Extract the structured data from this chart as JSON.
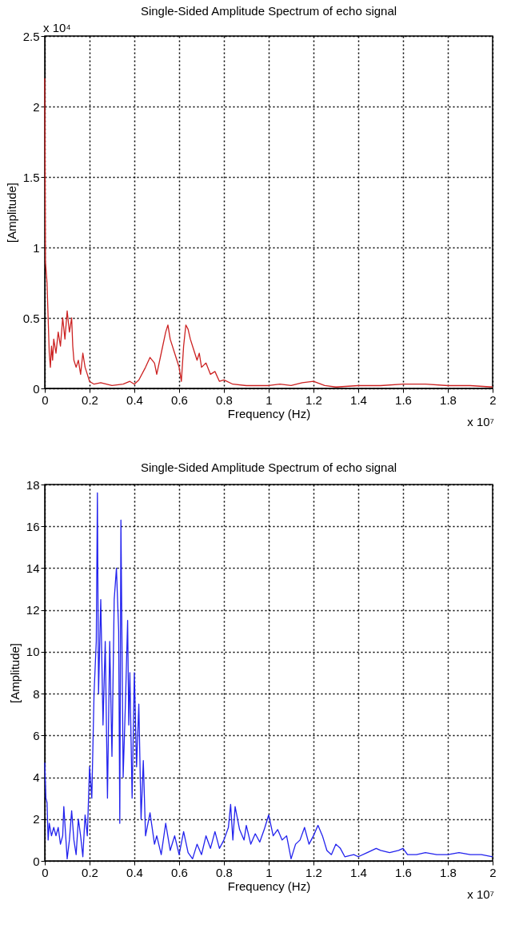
{
  "chart_data": [
    {
      "type": "line",
      "title": "Single-Sided Amplitude Spectrum of echo signal",
      "xlabel": "Frequency (Hz)",
      "ylabel": "[Amplitude]",
      "annotations": [
        "x 10⁴",
        "x 10⁷"
      ],
      "x": [
        0,
        0.003,
        0.01,
        0.015,
        0.02,
        0.025,
        0.03,
        0.035,
        0.04,
        0.05,
        0.06,
        0.07,
        0.08,
        0.09,
        0.1,
        0.11,
        0.12,
        0.125,
        0.13,
        0.14,
        0.15,
        0.16,
        0.17,
        0.18,
        0.19,
        0.2,
        0.22,
        0.25,
        0.3,
        0.35,
        0.38,
        0.4,
        0.42,
        0.45,
        0.47,
        0.49,
        0.5,
        0.52,
        0.54,
        0.55,
        0.56,
        0.58,
        0.59,
        0.6,
        0.61,
        0.62,
        0.63,
        0.64,
        0.65,
        0.66,
        0.68,
        0.69,
        0.7,
        0.72,
        0.74,
        0.76,
        0.78,
        0.8,
        0.84,
        0.9,
        1.0,
        1.05,
        1.1,
        1.15,
        1.2,
        1.25,
        1.3,
        1.4,
        1.5,
        1.6,
        1.7,
        1.8,
        1.9,
        2.0
      ],
      "series": [
        {
          "color": "#cc2222",
          "values": [
            2.2,
            0.9,
            0.75,
            0.5,
            0.25,
            0.15,
            0.3,
            0.2,
            0.35,
            0.25,
            0.4,
            0.3,
            0.5,
            0.35,
            0.55,
            0.4,
            0.5,
            0.3,
            0.2,
            0.15,
            0.2,
            0.1,
            0.25,
            0.15,
            0.1,
            0.05,
            0.03,
            0.04,
            0.02,
            0.03,
            0.05,
            0.03,
            0.06,
            0.15,
            0.22,
            0.18,
            0.1,
            0.25,
            0.4,
            0.45,
            0.35,
            0.25,
            0.2,
            0.15,
            0.05,
            0.3,
            0.45,
            0.42,
            0.35,
            0.3,
            0.2,
            0.25,
            0.15,
            0.18,
            0.1,
            0.12,
            0.05,
            0.06,
            0.03,
            0.02,
            0.02,
            0.03,
            0.02,
            0.04,
            0.05,
            0.02,
            0.01,
            0.02,
            0.02,
            0.03,
            0.03,
            0.02,
            0.02,
            0.01
          ]
        }
      ],
      "xlim": [
        0,
        2
      ],
      "xticks": [
        0,
        0.2,
        0.4,
        0.6,
        0.8,
        1,
        1.2,
        1.4,
        1.6,
        1.8,
        2
      ],
      "ylim": [
        0,
        2.5
      ],
      "yticks": [
        0,
        0.5,
        1,
        1.5,
        2,
        2.5
      ],
      "grid": true
    },
    {
      "type": "line",
      "title": "Single-Sided Amplitude Spectrum of echo signal",
      "xlabel": "Frequency (Hz)",
      "ylabel": "[Amplitude]",
      "annotations": [
        "x 10⁷"
      ],
      "x": [
        0,
        0.005,
        0.01,
        0.015,
        0.02,
        0.03,
        0.04,
        0.05,
        0.06,
        0.07,
        0.08,
        0.085,
        0.1,
        0.11,
        0.12,
        0.13,
        0.14,
        0.15,
        0.16,
        0.17,
        0.18,
        0.19,
        0.2,
        0.21,
        0.22,
        0.23,
        0.235,
        0.24,
        0.25,
        0.26,
        0.27,
        0.28,
        0.29,
        0.3,
        0.31,
        0.32,
        0.33,
        0.335,
        0.34,
        0.35,
        0.36,
        0.37,
        0.375,
        0.38,
        0.39,
        0.4,
        0.41,
        0.42,
        0.43,
        0.44,
        0.45,
        0.47,
        0.49,
        0.5,
        0.52,
        0.54,
        0.56,
        0.58,
        0.6,
        0.62,
        0.64,
        0.66,
        0.68,
        0.7,
        0.72,
        0.74,
        0.76,
        0.78,
        0.8,
        0.82,
        0.83,
        0.84,
        0.85,
        0.87,
        0.89,
        0.9,
        0.92,
        0.94,
        0.96,
        0.98,
        1.0,
        1.02,
        1.04,
        1.06,
        1.08,
        1.1,
        1.12,
        1.14,
        1.16,
        1.18,
        1.2,
        1.22,
        1.24,
        1.26,
        1.28,
        1.3,
        1.32,
        1.34,
        1.38,
        1.4,
        1.44,
        1.48,
        1.5,
        1.54,
        1.58,
        1.6,
        1.62,
        1.66,
        1.7,
        1.75,
        1.8,
        1.85,
        1.9,
        1.95,
        2.0
      ],
      "series": [
        {
          "color": "#2222ee",
          "values": [
            4.7,
            3,
            2.8,
            1,
            1.8,
            1.2,
            1.6,
            1.2,
            1.6,
            0.8,
            1.2,
            2.6,
            0.1,
            1,
            2.4,
            1,
            0.3,
            2,
            1.2,
            0.2,
            2.2,
            1.2,
            4.5,
            3,
            8,
            10.5,
            17.6,
            8,
            12.5,
            6.5,
            10.5,
            3,
            10.5,
            5,
            12.5,
            14,
            11,
            1.8,
            16.3,
            4,
            7.5,
            11.5,
            6.5,
            9,
            3,
            9,
            4.5,
            7.5,
            2,
            4.8,
            1.2,
            2.3,
            0.8,
            1.2,
            0.3,
            1.8,
            0.5,
            1.2,
            0.3,
            1.4,
            0.4,
            0.1,
            0.8,
            0.3,
            1.2,
            0.6,
            1.4,
            0.6,
            1,
            1.6,
            2.7,
            1,
            2.6,
            1.5,
            1,
            1.7,
            0.8,
            1.3,
            0.9,
            1.5,
            2.2,
            1.2,
            1.5,
            1,
            1.2,
            0.1,
            0.8,
            1,
            1.6,
            0.8,
            1.2,
            1.7,
            1.2,
            0.5,
            0.3,
            0.8,
            0.6,
            0.2,
            0.3,
            0.2,
            0.4,
            0.6,
            0.5,
            0.4,
            0.5,
            0.6,
            0.3,
            0.3,
            0.4,
            0.3,
            0.3,
            0.4,
            0.3,
            0.3,
            0.2
          ]
        }
      ],
      "xlim": [
        0,
        2
      ],
      "xticks": [
        0,
        0.2,
        0.4,
        0.6,
        0.8,
        1,
        1.2,
        1.4,
        1.6,
        1.8,
        2
      ],
      "ylim": [
        0,
        18
      ],
      "yticks": [
        0,
        2,
        4,
        6,
        8,
        10,
        12,
        14,
        16,
        18
      ],
      "grid": true
    }
  ]
}
